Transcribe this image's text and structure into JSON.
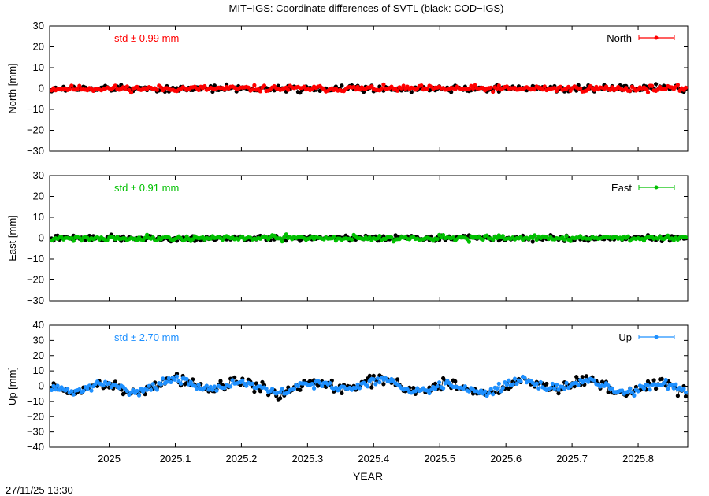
{
  "title": "MIT−IGS: Coordinate differences of SVTL (black: COD−IGS)",
  "timestamp": "27/11/25 13:30",
  "chart_data": [
    {
      "type": "scatter",
      "ylabel": "North [mm]",
      "ylim": [
        -30,
        30
      ],
      "yticks": [
        -30,
        -20,
        -10,
        0,
        10,
        20,
        30
      ],
      "std_label": "std ± 0.99 mm",
      "legend": "North",
      "legend_position": "top-right",
      "color": "#ff0000",
      "series": [
        {
          "name": "MIT−IGS",
          "color": "#ff0000",
          "amp": 0.99,
          "wave": 0,
          "seed": 11
        },
        {
          "name": "COD−IGS",
          "color": "#000000",
          "amp": 1.1,
          "wave": 0,
          "seed": 12
        }
      ]
    },
    {
      "type": "scatter",
      "ylabel": "East [mm]",
      "ylim": [
        -30,
        30
      ],
      "yticks": [
        -30,
        -20,
        -10,
        0,
        10,
        20,
        30
      ],
      "std_label": "std ± 0.91 mm",
      "legend": "East",
      "legend_position": "top-right",
      "color": "#00c000",
      "series": [
        {
          "name": "MIT−IGS",
          "color": "#00c000",
          "amp": 0.91,
          "wave": 0,
          "seed": 21
        },
        {
          "name": "COD−IGS",
          "color": "#000000",
          "amp": 0.95,
          "wave": 0,
          "seed": 22
        }
      ]
    },
    {
      "type": "scatter",
      "ylabel": "Up [mm]",
      "ylim": [
        -40,
        40
      ],
      "yticks": [
        -40,
        -30,
        -20,
        -10,
        0,
        10,
        20,
        30,
        40
      ],
      "std_label": "std ± 2.70 mm",
      "legend": "Up",
      "legend_position": "top-right",
      "color": "#1e90ff",
      "series": [
        {
          "name": "MIT−IGS",
          "color": "#1e90ff",
          "amp": 1.8,
          "wave": 2.7,
          "seed": 31
        },
        {
          "name": "COD−IGS",
          "color": "#000000",
          "amp": 2.6,
          "wave": 3.2,
          "seed": 32
        }
      ]
    }
  ],
  "xaxis": {
    "xlabel": "YEAR",
    "xlim": [
      2024.91,
      2025.875
    ],
    "xticks": [
      2025,
      2025.1,
      2025.2,
      2025.3,
      2025.4,
      2025.5,
      2025.6,
      2025.7,
      2025.8
    ],
    "xtick_labels": [
      "2025",
      "2025.1",
      "2025.2",
      "2025.3",
      "2025.4",
      "2025.5",
      "2025.6",
      "2025.7",
      "2025.8"
    ]
  }
}
